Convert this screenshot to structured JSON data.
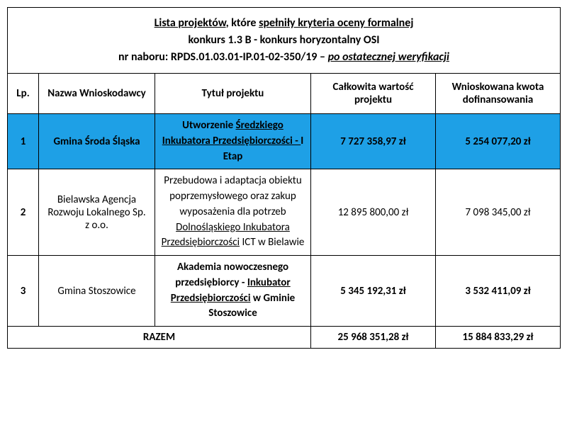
{
  "title": {
    "line1_underlined_prefix": "Lista projektów",
    "line1_rest": ", które ",
    "line1_underlined_suffix": "spełniły kryteria oceny formalnej",
    "line2": "konkurs 1.3 B - konkurs horyzontalny OSI",
    "line3_prefix": "nr naboru: RPDS.01.03.01-IP.01-02-350/19 – ",
    "line3_underlined": "po ostatecznej weryfikacji"
  },
  "columns": {
    "lp": "Lp.",
    "name": "Nazwa Wnioskodawcy",
    "title": "Tytuł projektu",
    "value": "Całkowita wartość projektu",
    "funding": "Wnioskowana kwota dofinansowania"
  },
  "rows": [
    {
      "lp": "1",
      "name": "Gmina Środa Śląska",
      "title_parts": {
        "p1": "Utworzenie ",
        "u1": "Średzkiego Inkubatora Przedsiębiorczości - ",
        "p2": "I Etap"
      },
      "value": "7 727 358,97 zł",
      "funding": "5 254 077,20 zł",
      "highlight": true,
      "bold": true
    },
    {
      "lp": "2",
      "name": "Bielawska Agencja Rozwoju Lokalnego Sp. z o.o.",
      "title_parts": {
        "p1": "Przebudowa i adaptacja obiektu poprzemysłowego oraz zakup wyposażenia dla potrzeb ",
        "u1": "Dolnośląskiego Inkubatora Przedsiębiorczości",
        "p2": " ICT w Bielawie"
      },
      "value": "12 895 800,00 zł",
      "funding": "7 098 345,00 zł",
      "highlight": false,
      "bold": false
    },
    {
      "lp": "3",
      "name": "Gmina Stoszowice",
      "title_parts": {
        "p1": "Akademia nowoczesnego przedsiębiorcy - ",
        "u1": "Inkubator Przedsiębiorczości",
        "p2": " w Gminie Stoszowice"
      },
      "value": "5 345 192,31 zł",
      "funding": "3 532 411,09 zł",
      "highlight": false,
      "bold": true
    }
  ],
  "totals": {
    "label": "RAZEM",
    "value": "25 968 351,28 zł",
    "funding": "15 884 833,29 zł"
  },
  "style": {
    "highlight_color": "#1ea0e6",
    "border_color": "#000000",
    "background": "#ffffff"
  }
}
